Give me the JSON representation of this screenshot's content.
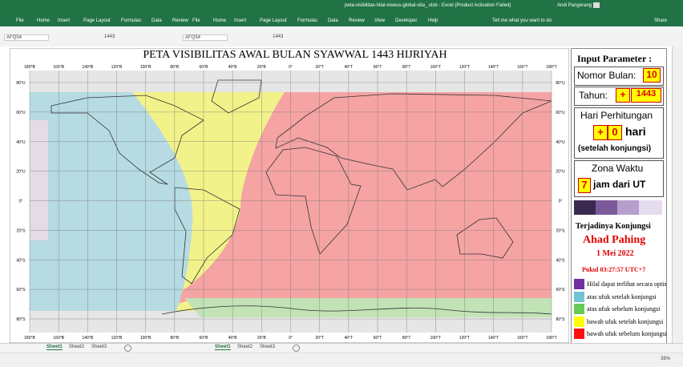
{
  "window": {
    "file_title": "peta-visibilitas-hilal-meeus-global-vba_.xlsb - Excel (Product Activation Failed)",
    "user": "Andi Pangerang"
  },
  "ribbon_left": [
    "File",
    "Home",
    "Insert",
    "Page Layout",
    "Formulas",
    "Data",
    "Review"
  ],
  "ribbon_right": [
    "File",
    "Home",
    "Insert",
    "Page Layout",
    "Formulas",
    "Data",
    "Review",
    "View",
    "Developer",
    "Help"
  ],
  "tell_me": "Tell me what you want to do",
  "share": "Share",
  "formula_bar": [
    {
      "name_box": "AFQ54",
      "formula": "1443"
    },
    {
      "name_box": "AFQ54",
      "formula": "1443"
    }
  ],
  "map": {
    "title": "PETA VISIBILITAS AWAL BULAN SYAWWAL 1443 HIJRIYAH",
    "lon_labels": [
      "180°B",
      "160°B",
      "140°B",
      "120°B",
      "100°B",
      "80°B",
      "60°B",
      "40°B",
      "20°B",
      "0°",
      "20°T",
      "40°T",
      "60°T",
      "80°T",
      "100°T",
      "120°T",
      "140°T",
      "160°T",
      "180°T"
    ],
    "lat_labels": [
      "80°U",
      "60°U",
      "40°U",
      "20°U",
      "0°",
      "20°S",
      "40°S",
      "60°S",
      "80°S"
    ]
  },
  "panel": {
    "heading": "Input Parameter :",
    "month_label": "Nomor Bulan:",
    "month": "10",
    "year_label": "Tahun:",
    "year_sign": "+",
    "year": "1443",
    "day_heading": "Hari Perhitungan",
    "day_sign": "+",
    "day": "0",
    "day_unit": "hari",
    "day_note": "(setelah konjungsi)",
    "zone_heading": "Zona Waktu",
    "zone": "7",
    "zone_unit": "jam dari UT",
    "conj_heading": "Terjadinya Konjungsi",
    "conj_day": "Ahad Pahing",
    "conj_date": "1 Mei 2022",
    "conj_time": "Pukul 03:27:57 UTC+7"
  },
  "legend": [
    {
      "label": "Hilal dapat terlihat secara optis",
      "color": "#7030a0"
    },
    {
      "label": "atas ufuk setelah konjungsi",
      "color": "#6fc5d6"
    },
    {
      "label": "atas ufuk sebelum konjungsi",
      "color": "#66cc55"
    },
    {
      "label": "bawah ufuk setelah konjungsi",
      "color": "#ffff00"
    },
    {
      "label": "bawah ufuk sebelum konjungsi",
      "color": "#ff1010"
    }
  ],
  "sheet_tabs": [
    [
      "Sheet1",
      "Sheet2",
      "Sheet3"
    ],
    [
      "Sheet1",
      "Sheet2",
      "Sheet3"
    ]
  ],
  "zoom": "38%"
}
